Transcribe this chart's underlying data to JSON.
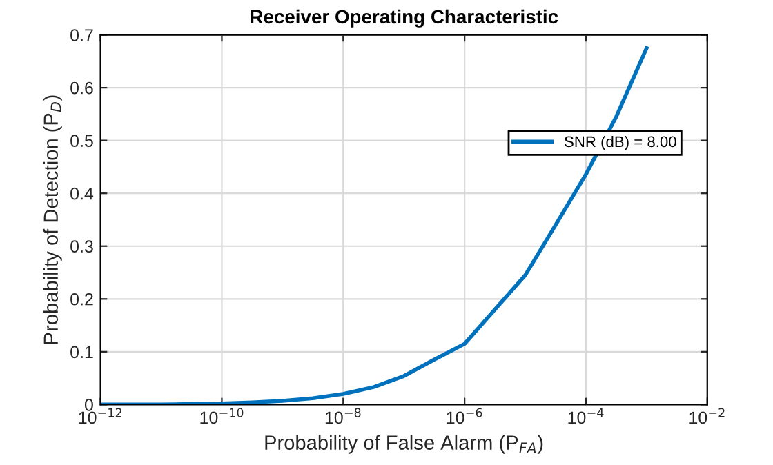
{
  "chart_data": {
    "type": "line",
    "title": "Receiver Operating Characteristic",
    "xlabel": "Probability of False Alarm (P$_{FA}$)",
    "ylabel": "Probability of Detection (P$_{D}$)",
    "x": [
      1e-12,
      3.16e-12,
      1e-11,
      3.16e-11,
      1e-10,
      3.16e-10,
      1e-09,
      3.16e-09,
      1e-08,
      3.16e-08,
      1e-07,
      3.16e-07,
      1e-06,
      3.16e-06,
      1e-05,
      3.16e-05,
      0.0001,
      0.000316,
      0.001
    ],
    "series": [
      {
        "name": "SNR (dB) = 8.00",
        "color": "#0072bd",
        "values": [
          0.0,
          0.0,
          0.0,
          0.001,
          0.002,
          0.004,
          0.007,
          0.012,
          0.02,
          0.033,
          0.054,
          0.085,
          0.115,
          0.18,
          0.245,
          0.34,
          0.436,
          0.545,
          0.675
        ]
      }
    ],
    "log": "x",
    "xlim": [
      1e-12,
      0.01
    ],
    "ylim": [
      0,
      0.7
    ],
    "xticks": [
      {
        "value": 1e-12,
        "label": "10$^{−12}$"
      },
      {
        "value": 1e-10,
        "label": "10$^{−10}$"
      },
      {
        "value": 1e-08,
        "label": "10$^{−8}$"
      },
      {
        "value": 1e-06,
        "label": "10$^{−6}$"
      },
      {
        "value": 0.0001,
        "label": "10$^{−4}$"
      },
      {
        "value": 0.01,
        "label": "10$^{−2}$"
      }
    ],
    "yticks": [
      0,
      0.1,
      0.2,
      0.3,
      0.4,
      0.5,
      0.6,
      0.7
    ],
    "grid": true,
    "legend": "top right",
    "line_style": "solid",
    "marker": "none"
  }
}
